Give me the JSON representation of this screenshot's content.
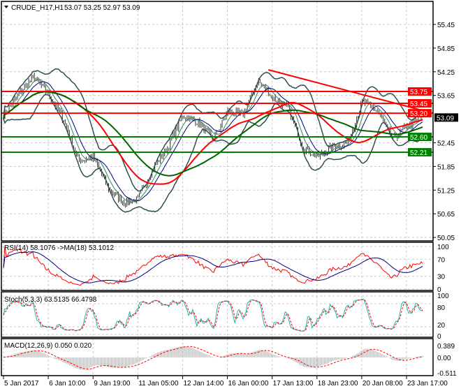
{
  "header": {
    "symbol": "CRUDE_H17,H1",
    "ohlc": "53.07 53.25 52.97 53.09"
  },
  "chart_data": {
    "type": "line",
    "title": "CRUDE_H17,H1",
    "subtitle": "53.07 53.25 52.97 53.09",
    "price_closes_sampled": [
      53.15,
      53.68,
      54.12,
      53.68,
      53.06,
      52.0,
      52.09,
      51.3,
      50.94,
      51.03,
      51.8,
      52.35,
      53.15,
      52.97,
      52.53,
      53.24,
      53.15,
      54.03,
      53.59,
      53.33,
      52.35,
      52.09,
      52.35,
      52.44,
      53.5,
      53.24,
      52.53,
      52.88,
      53.09
    ],
    "ylim": [
      50.05,
      55.75
    ],
    "y_ticks": [
      "55.45",
      "54.85",
      "54.25",
      "53.65",
      "52.45",
      "51.85",
      "51.25",
      "50.65",
      "50.05"
    ],
    "x_ticks": [
      "5 Jan 2017",
      "6 Jan 10:00",
      "9 Jan 19:00",
      "11 Jan 05:00",
      "12 Jan 14:00",
      "16 Jan 00:00",
      "17 Jan 13:00",
      "18 Jan 23:00",
      "20 Jan 08:00",
      "23 Jan 17:00"
    ],
    "current_price": "53.09",
    "levels": [
      {
        "value": 53.75,
        "label": "53.75",
        "color": "#ff0000"
      },
      {
        "value": 53.45,
        "label": "53.45",
        "color": "#ff0000"
      },
      {
        "value": 53.2,
        "label": "53.20",
        "color": "#ff0000"
      },
      {
        "value": 52.6,
        "label": "52.60",
        "color": "#008000"
      },
      {
        "value": 52.21,
        "label": "52.21",
        "color": "#008000"
      }
    ],
    "trendline": {
      "from": 54.3,
      "to": 53.2,
      "color": "#ff0000"
    },
    "grid": true,
    "indicators": {
      "rsi": {
        "label": "RSI(14) 58.1076  ->MA(18) 53.1012",
        "ticks": [
          "100",
          "70",
          "30",
          "0"
        ],
        "colors": [
          "#ff0000",
          "#000080"
        ]
      },
      "stoch": {
        "label": "Stoch(5,3,3) 63.5135 66.4798",
        "ticks": [
          "100",
          "80",
          "20",
          "0"
        ],
        "colors": [
          "#20b2aa",
          "#ff0000"
        ]
      },
      "macd": {
        "label": "MACD(12,26,9) 0.050 0.020",
        "ticks": [
          "0.389",
          "0.00",
          "-0.511"
        ],
        "colors": [
          "#c0c0c0",
          "#ff0000"
        ]
      }
    }
  }
}
